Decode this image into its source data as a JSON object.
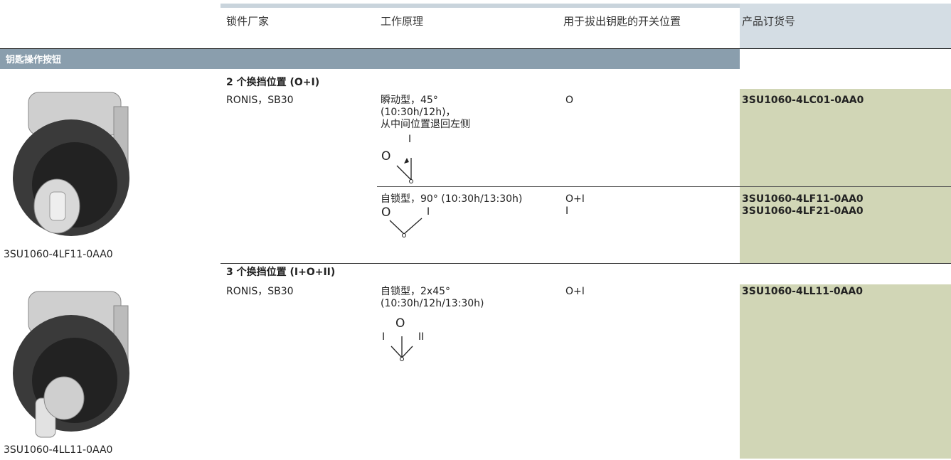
{
  "header": {
    "columns": [
      "锁件厂家",
      "工作原理",
      "用于拔出钥匙的开关位置",
      "产品订货号"
    ]
  },
  "section_title": "钥匙操作按钮",
  "groups": [
    {
      "heading": "2 个换挡位置 (O+I)",
      "image_caption": "3SU1060-4LF11-0AA0",
      "rows": [
        {
          "manufacturer": "RONIS，SB30",
          "principle": [
            "瞬动型，45°",
            "(10:30h/12h)，",
            "从中间位置退回左侧"
          ],
          "diagram_labels": [
            "O",
            "I"
          ],
          "positions": [
            "O"
          ],
          "order_numbers": [
            "3SU1060-4LC01-0AA0"
          ]
        },
        {
          "principle": [
            "自锁型，90° (10:30h/13:30h)"
          ],
          "diagram_labels": [
            "O",
            "I"
          ],
          "positions": [
            "O+I",
            "I"
          ],
          "order_numbers": [
            "3SU1060-4LF11-0AA0",
            "3SU1060-4LF21-0AA0"
          ]
        }
      ]
    },
    {
      "heading": "3 个换挡位置 (I+O+II)",
      "image_caption": "3SU1060-4LL11-0AA0",
      "rows": [
        {
          "manufacturer": "RONIS，SB30",
          "principle": [
            "自锁型，2x45°",
            "(10:30h/12h/13:30h)"
          ],
          "diagram_labels": [
            "O",
            "I",
            "II"
          ],
          "positions": [
            "O+I"
          ],
          "order_numbers": [
            "3SU1060-4LL11-0AA0"
          ]
        }
      ]
    }
  ]
}
